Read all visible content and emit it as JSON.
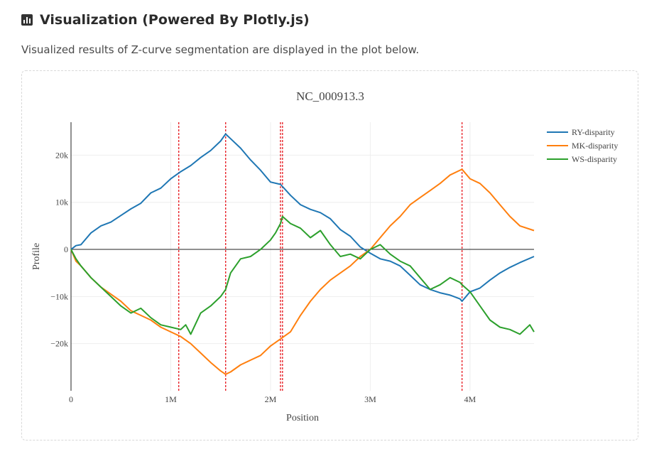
{
  "header": {
    "title": "Visualization (Powered By Plotly.js)",
    "icon": "bar-chart-icon",
    "subtitle": "Visualized results of Z-curve segmentation are displayed in the plot below."
  },
  "chart_data": {
    "type": "line",
    "title": "NC_000913.3",
    "xlabel": "Position",
    "ylabel": "Profile",
    "xlim": [
      0,
      4641652
    ],
    "ylim": [
      -30000,
      27000
    ],
    "x_ticks": [
      {
        "v": 0,
        "label": "0"
      },
      {
        "v": 1000000,
        "label": "1M"
      },
      {
        "v": 2000000,
        "label": "2M"
      },
      {
        "v": 3000000,
        "label": "3M"
      },
      {
        "v": 4000000,
        "label": "4M"
      }
    ],
    "y_ticks": [
      {
        "v": -20000,
        "label": "−20k"
      },
      {
        "v": -10000,
        "label": "−10k"
      },
      {
        "v": 0,
        "label": "0"
      },
      {
        "v": 10000,
        "label": "10k"
      },
      {
        "v": 20000,
        "label": "20k"
      }
    ],
    "legend_position": "top-right",
    "segment_boundaries": [
      1080000,
      1550000,
      2100000,
      2120000,
      3920000
    ],
    "series": [
      {
        "name": "RY-disparity",
        "color": "#1f77b4",
        "x": [
          0,
          50000,
          100000,
          200000,
          300000,
          400000,
          500000,
          600000,
          700000,
          800000,
          900000,
          1000000,
          1100000,
          1200000,
          1300000,
          1400000,
          1500000,
          1550000,
          1600000,
          1700000,
          1800000,
          1900000,
          2000000,
          2100000,
          2200000,
          2300000,
          2400000,
          2500000,
          2600000,
          2700000,
          2800000,
          2900000,
          3000000,
          3100000,
          3200000,
          3300000,
          3400000,
          3500000,
          3600000,
          3700000,
          3800000,
          3900000,
          3920000,
          4000000,
          4100000,
          4200000,
          4300000,
          4400000,
          4500000,
          4641652
        ],
        "y": [
          0,
          800,
          1000,
          3500,
          5000,
          5800,
          7200,
          8600,
          9800,
          12000,
          13000,
          15000,
          16500,
          17800,
          19500,
          21000,
          23000,
          24500,
          23500,
          21500,
          19000,
          16800,
          14300,
          13800,
          11500,
          9500,
          8500,
          7800,
          6500,
          4200,
          2800,
          500,
          -800,
          -2000,
          -2500,
          -3500,
          -5500,
          -7500,
          -8500,
          -9200,
          -9700,
          -10500,
          -11000,
          -9000,
          -8200,
          -6500,
          -5000,
          -3800,
          -2800,
          -1500
        ]
      },
      {
        "name": "MK-disparity",
        "color": "#ff7f0e",
        "x": [
          0,
          50000,
          100000,
          200000,
          300000,
          400000,
          500000,
          600000,
          700000,
          800000,
          900000,
          1000000,
          1100000,
          1200000,
          1300000,
          1400000,
          1500000,
          1550000,
          1600000,
          1700000,
          1800000,
          1900000,
          2000000,
          2100000,
          2200000,
          2300000,
          2400000,
          2500000,
          2600000,
          2700000,
          2800000,
          2900000,
          3000000,
          3100000,
          3200000,
          3300000,
          3400000,
          3500000,
          3600000,
          3700000,
          3800000,
          3900000,
          3920000,
          4000000,
          4100000,
          4200000,
          4300000,
          4400000,
          4500000,
          4641652
        ],
        "y": [
          0,
          -2500,
          -3500,
          -6000,
          -8000,
          -9500,
          -11000,
          -13000,
          -14000,
          -15000,
          -16500,
          -17500,
          -18500,
          -20000,
          -22000,
          -24000,
          -25800,
          -26500,
          -26000,
          -24500,
          -23500,
          -22500,
          -20500,
          -19000,
          -17500,
          -14000,
          -11000,
          -8500,
          -6500,
          -5000,
          -3500,
          -1500,
          0,
          2500,
          5000,
          7000,
          9500,
          11000,
          12500,
          14000,
          15800,
          16800,
          17000,
          15000,
          14000,
          12000,
          9500,
          7000,
          5000,
          4000
        ]
      },
      {
        "name": "WS-disparity",
        "color": "#2ca02c",
        "x": [
          0,
          50000,
          100000,
          200000,
          300000,
          400000,
          500000,
          600000,
          700000,
          800000,
          900000,
          1000000,
          1100000,
          1150000,
          1200000,
          1300000,
          1400000,
          1500000,
          1550000,
          1600000,
          1700000,
          1800000,
          1900000,
          2000000,
          2050000,
          2100000,
          2120000,
          2200000,
          2300000,
          2400000,
          2500000,
          2600000,
          2700000,
          2800000,
          2900000,
          3000000,
          3100000,
          3200000,
          3300000,
          3400000,
          3500000,
          3600000,
          3700000,
          3800000,
          3900000,
          3920000,
          4000000,
          4100000,
          4200000,
          4300000,
          4400000,
          4500000,
          4550000,
          4600000,
          4641652
        ],
        "y": [
          0,
          -2000,
          -3500,
          -6000,
          -8000,
          -10000,
          -12000,
          -13500,
          -12500,
          -14500,
          -16000,
          -16500,
          -17000,
          -16000,
          -18000,
          -13500,
          -12000,
          -10000,
          -8500,
          -5000,
          -2000,
          -1500,
          0,
          2000,
          3500,
          5500,
          7000,
          5500,
          4500,
          2500,
          4000,
          1000,
          -1500,
          -1000,
          -2000,
          0,
          1000,
          -1000,
          -2500,
          -3500,
          -6000,
          -8500,
          -7500,
          -6000,
          -7000,
          -7500,
          -9000,
          -12000,
          -15000,
          -16500,
          -17000,
          -18000,
          -17000,
          -16000,
          -17500
        ]
      }
    ]
  }
}
